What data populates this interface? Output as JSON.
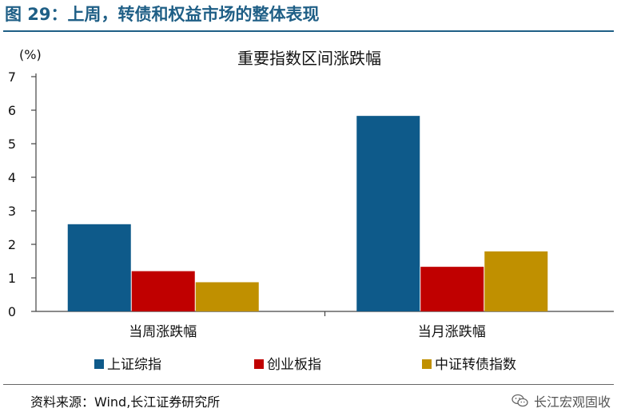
{
  "header": {
    "figure_title": "图 29：上周，转债和权益市场的整体表现"
  },
  "footer": {
    "source": "资料来源：Wind,长江证券研究所",
    "watermark": "长江宏观固收",
    "watermark_icon": "wechat-icon"
  },
  "chart_data": {
    "type": "bar",
    "title": "重要指数区间涨跌幅",
    "ylabel": "(%)",
    "xlabel": "",
    "ylim": [
      0,
      7
    ],
    "yticks": [
      0,
      1,
      2,
      3,
      4,
      5,
      6,
      7
    ],
    "categories": [
      "当周涨跌幅",
      "当月涨跌幅"
    ],
    "series": [
      {
        "name": "上证综指",
        "color": "#0e5a8a",
        "values": [
          2.6,
          5.83
        ]
      },
      {
        "name": "创业板指",
        "color": "#c00000",
        "values": [
          1.2,
          1.33
        ]
      },
      {
        "name": "中证转债指数",
        "color": "#c09000",
        "values": [
          0.87,
          1.79
        ]
      }
    ],
    "grid": false,
    "legend_position": "bottom"
  }
}
